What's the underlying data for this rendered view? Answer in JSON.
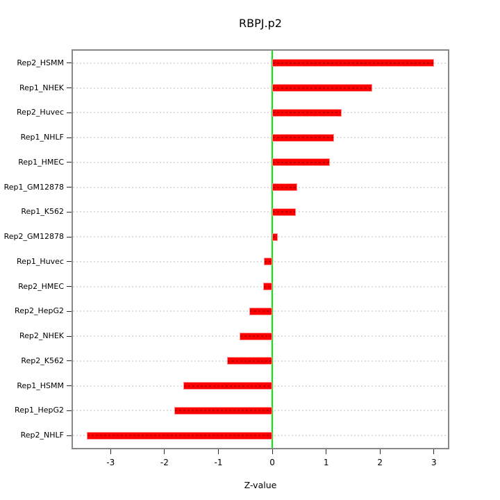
{
  "title": "RBPJ.p2",
  "chart_data": {
    "type": "bar",
    "orientation": "horizontal",
    "title": "RBPJ.p2",
    "xlabel": "Z-value",
    "categories": [
      "Rep2_HSMM",
      "Rep1_NHEK",
      "Rep2_Huvec",
      "Rep1_NHLF",
      "Rep1_HMEC",
      "Rep1_GM12878",
      "Rep1_K562",
      "Rep2_GM12878",
      "Rep1_Huvec",
      "Rep2_HMEC",
      "Rep2_HepG2",
      "Rep2_NHEK",
      "Rep2_K562",
      "Rep1_HSMM",
      "Rep1_HepG2",
      "Rep2_NHLF"
    ],
    "values": [
      3.0,
      1.85,
      1.29,
      1.15,
      1.07,
      0.46,
      0.44,
      0.1,
      -0.15,
      -0.17,
      -0.42,
      -0.61,
      -0.84,
      -1.65,
      -1.82,
      -3.44
    ],
    "xlim": [
      -3.7,
      3.26
    ],
    "xticks": [
      -3,
      -2,
      -1,
      0,
      1,
      2,
      3
    ],
    "grid": "dotted-horizontal",
    "zero_line": true,
    "legend": "none",
    "colors": {
      "bar_fill": "#ff0000",
      "bar_border": "#ff9090",
      "zero_line": "#00ee00",
      "grid": "#dedede",
      "box_border": "#878787",
      "tick": "#2b2b2b",
      "text": "#000000",
      "background": "#ffffff"
    }
  }
}
